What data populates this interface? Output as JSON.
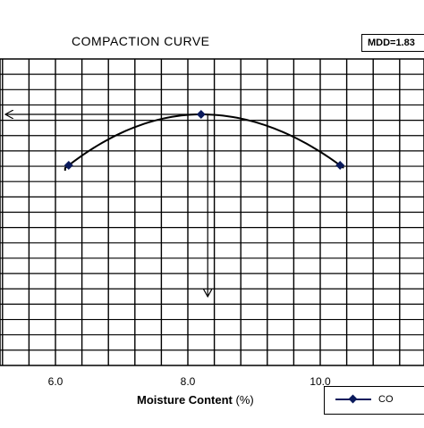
{
  "chart_data": {
    "type": "line",
    "title": "COMPACTION CURVE",
    "xlabel_bold": "Moisture Content",
    "xlabel_unit": "(%)",
    "ylabel": "",
    "xlim": [
      5.2,
      12.0
    ],
    "x_ticks": [
      6.0,
      8.0,
      10.0
    ],
    "x_tick_labels": [
      "6.0",
      "8.0",
      "10.0"
    ],
    "grid": true,
    "legend_position": "bottom-right",
    "mdd_label": "MDD=1.83",
    "series": [
      {
        "name": "CO",
        "color": "#0a1a5c",
        "x": [
          6.2,
          8.2,
          10.3
        ],
        "y": [
          0.0,
          0.3,
          0.0
        ]
      }
    ],
    "annotations": {
      "omc_arrow_x": 8.3,
      "mdd_arrow_from_x": 8.2
    }
  }
}
